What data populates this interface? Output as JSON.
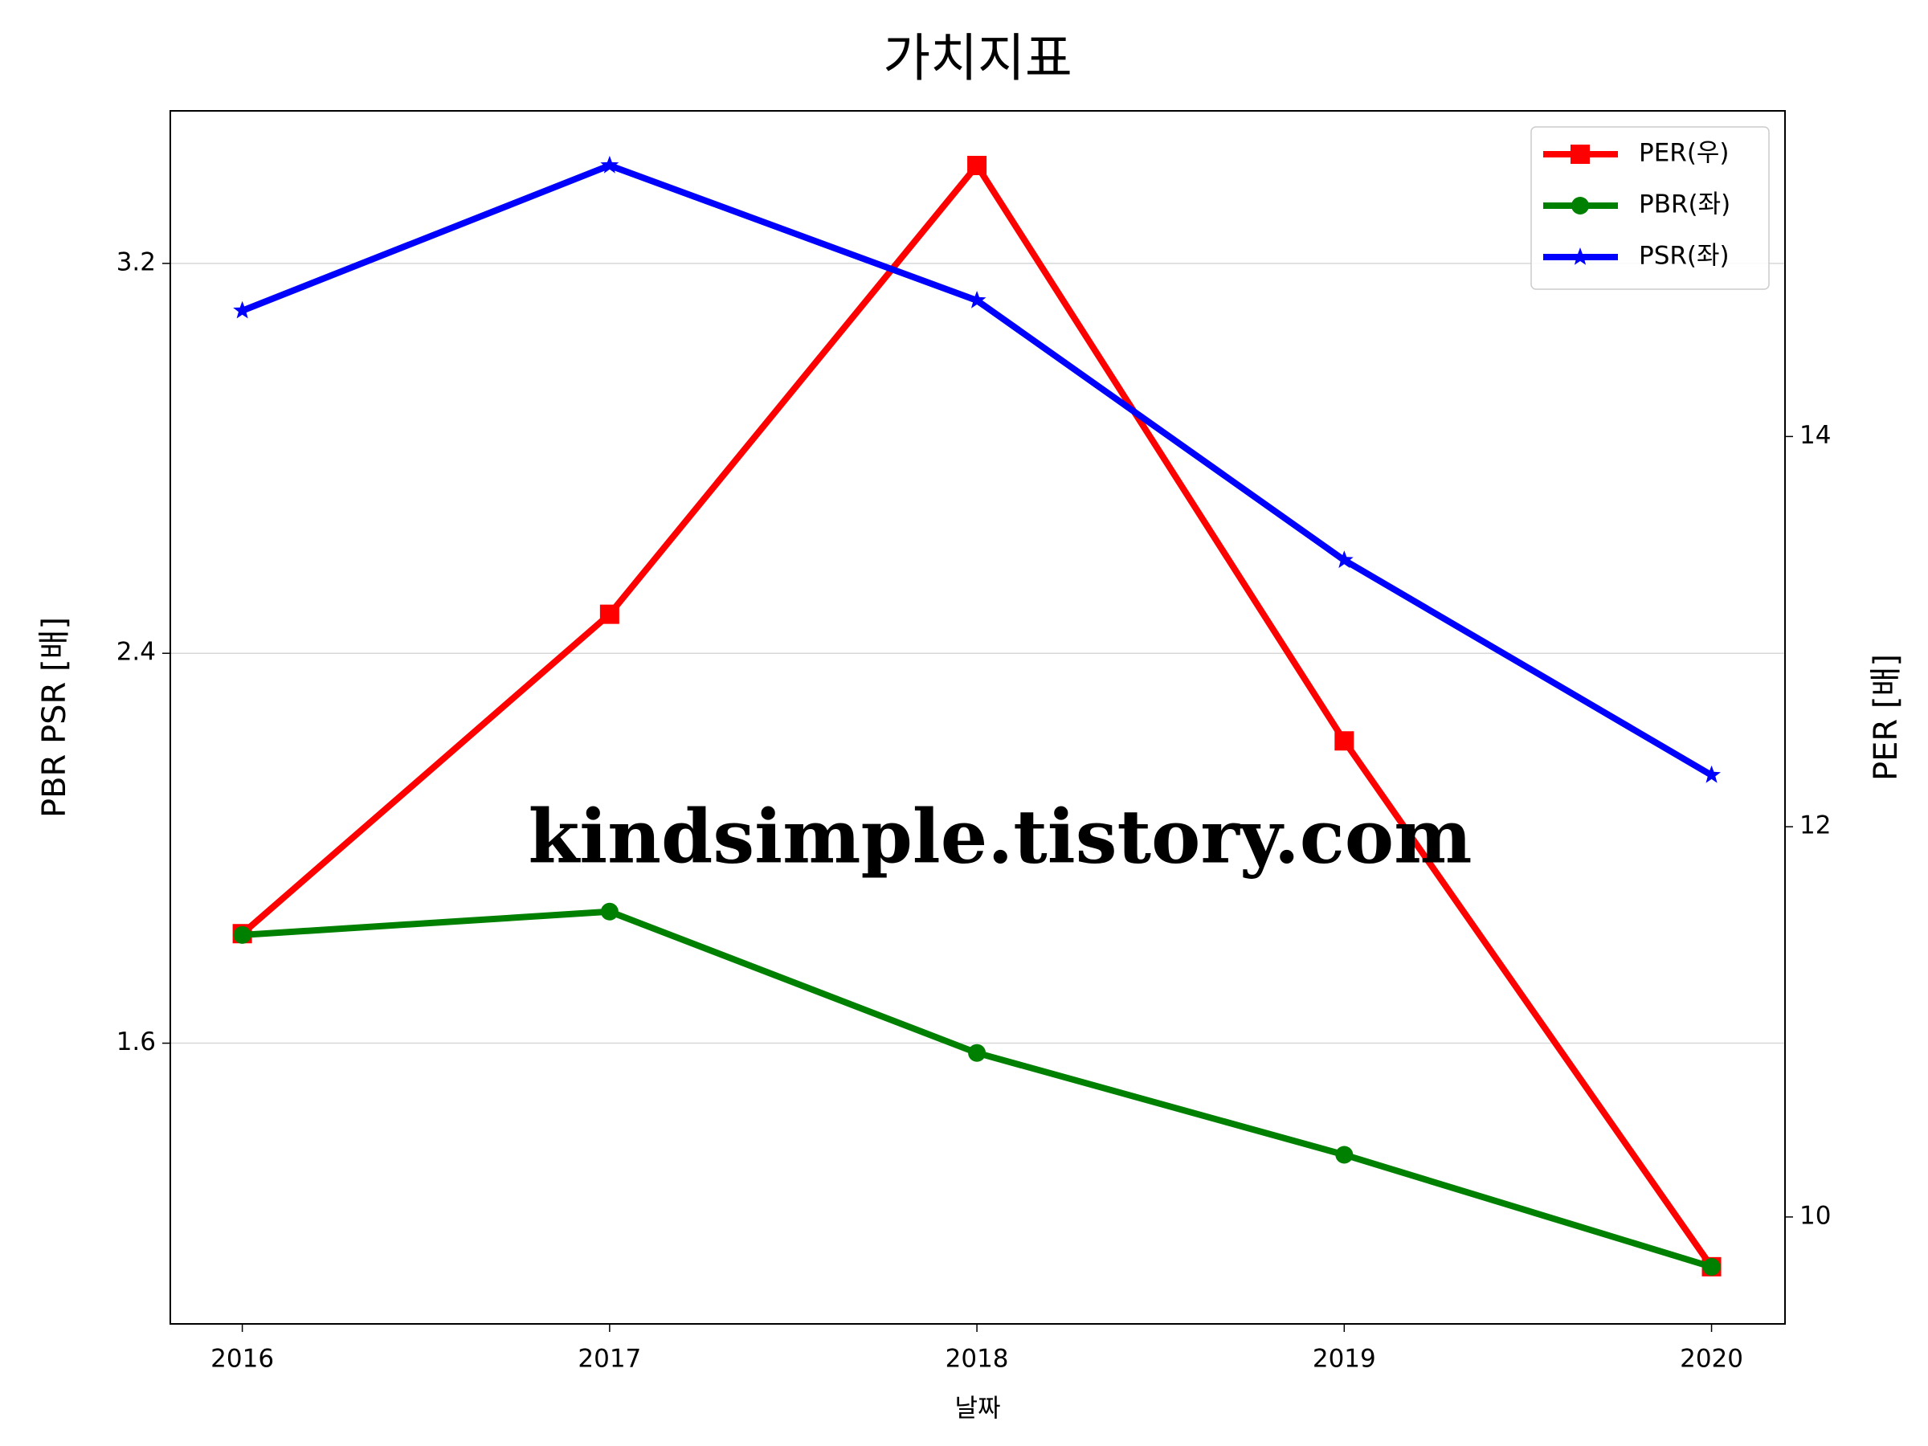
{
  "chart_data": {
    "type": "line",
    "title": "가치지표",
    "xlabel": "날짜",
    "ylabel": "PBR PSR [배]",
    "y2label": "PER [배]",
    "watermark": "kindsimple.tistory.com",
    "x": [
      2016,
      2017,
      2018,
      2019,
      2020
    ],
    "xlim": [
      2015.804,
      2020.2
    ],
    "xticks": [
      2016,
      2017,
      2018,
      2019,
      2020
    ],
    "ylim": [
      1.024,
      3.513
    ],
    "yticks": [
      1.6,
      2.4,
      3.2
    ],
    "y2lim": [
      9.452,
      15.669
    ],
    "y2ticks": [
      10,
      12,
      14
    ],
    "grid": true,
    "legend": "upper right",
    "ylabel_color": "#008000",
    "y2label_color": "#ff0000",
    "series": [
      {
        "name": "PER(우)",
        "color": "#ff0000",
        "marker": "square",
        "axis": "y2",
        "values": [
          11.452,
          13.089,
          15.389,
          12.44,
          9.745
        ]
      },
      {
        "name": "PBR(좌)",
        "color": "#008000",
        "marker": "circle",
        "values": [
          1.822,
          1.87,
          1.58,
          1.371,
          1.141
        ]
      },
      {
        "name": "PSR(좌)",
        "color": "#0000ff",
        "marker": "star",
        "values": [
          3.103,
          3.401,
          3.124,
          2.591,
          2.15
        ]
      }
    ]
  }
}
